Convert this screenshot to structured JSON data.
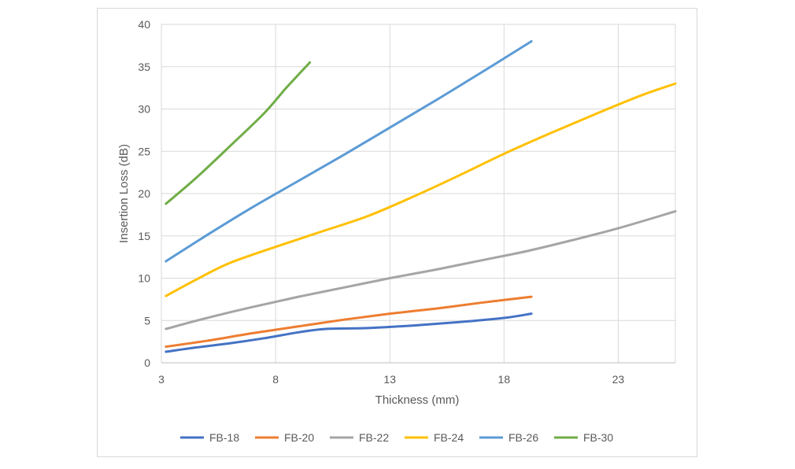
{
  "chart_data": {
    "type": "line",
    "title": "",
    "xlabel": "Thickness (mm)",
    "ylabel": "Insertion Loss (dB)",
    "xlim": [
      3,
      25.5
    ],
    "ylim": [
      0,
      40
    ],
    "x_ticks": [
      3,
      8,
      13,
      18,
      23
    ],
    "y_ticks": [
      0,
      5,
      10,
      15,
      20,
      25,
      30,
      35,
      40
    ],
    "grid": true,
    "legend_position": "bottom",
    "series": [
      {
        "name": "FB-18",
        "color": "#4472c4",
        "x": [
          3.2,
          4.5,
          6,
          7.5,
          9,
          10.2,
          12,
          14,
          16,
          18,
          19.2
        ],
        "y": [
          1.3,
          1.8,
          2.3,
          2.9,
          3.6,
          4.0,
          4.1,
          4.4,
          4.8,
          5.3,
          5.8
        ]
      },
      {
        "name": "FB-20",
        "color": "#ed7d31",
        "x": [
          3.2,
          5,
          7,
          9,
          11,
          13,
          15,
          17,
          19.2
        ],
        "y": [
          1.9,
          2.6,
          3.5,
          4.3,
          5.1,
          5.8,
          6.4,
          7.1,
          7.8
        ]
      },
      {
        "name": "FB-22",
        "color": "#a5a5a5",
        "x": [
          3.2,
          5,
          7,
          9,
          11,
          13,
          15,
          17,
          19,
          21,
          23,
          25.5
        ],
        "y": [
          4.0,
          5.3,
          6.6,
          7.8,
          8.9,
          10.0,
          11.0,
          12.1,
          13.2,
          14.5,
          15.9,
          17.9
        ]
      },
      {
        "name": "FB-24",
        "color": "#ffc000",
        "x": [
          3.2,
          4.5,
          6,
          8,
          10,
          12,
          14,
          16,
          18,
          20,
          22,
          24,
          25.5
        ],
        "y": [
          7.9,
          9.8,
          11.8,
          13.7,
          15.5,
          17.3,
          19.6,
          22.1,
          24.7,
          27.1,
          29.4,
          31.6,
          33.0
        ]
      },
      {
        "name": "FB-26",
        "color": "#5b9bd5",
        "x": [
          3.2,
          5,
          7,
          9,
          11,
          13,
          15,
          17,
          19.2
        ],
        "y": [
          12.0,
          15.1,
          18.4,
          21.5,
          24.6,
          27.8,
          31.0,
          34.3,
          38.0
        ]
      },
      {
        "name": "FB-30",
        "color": "#70ad47",
        "x": [
          3.2,
          4.5,
          6,
          7.5,
          8.5,
          9.5
        ],
        "y": [
          18.8,
          21.8,
          25.6,
          29.5,
          32.6,
          35.5
        ]
      }
    ]
  }
}
